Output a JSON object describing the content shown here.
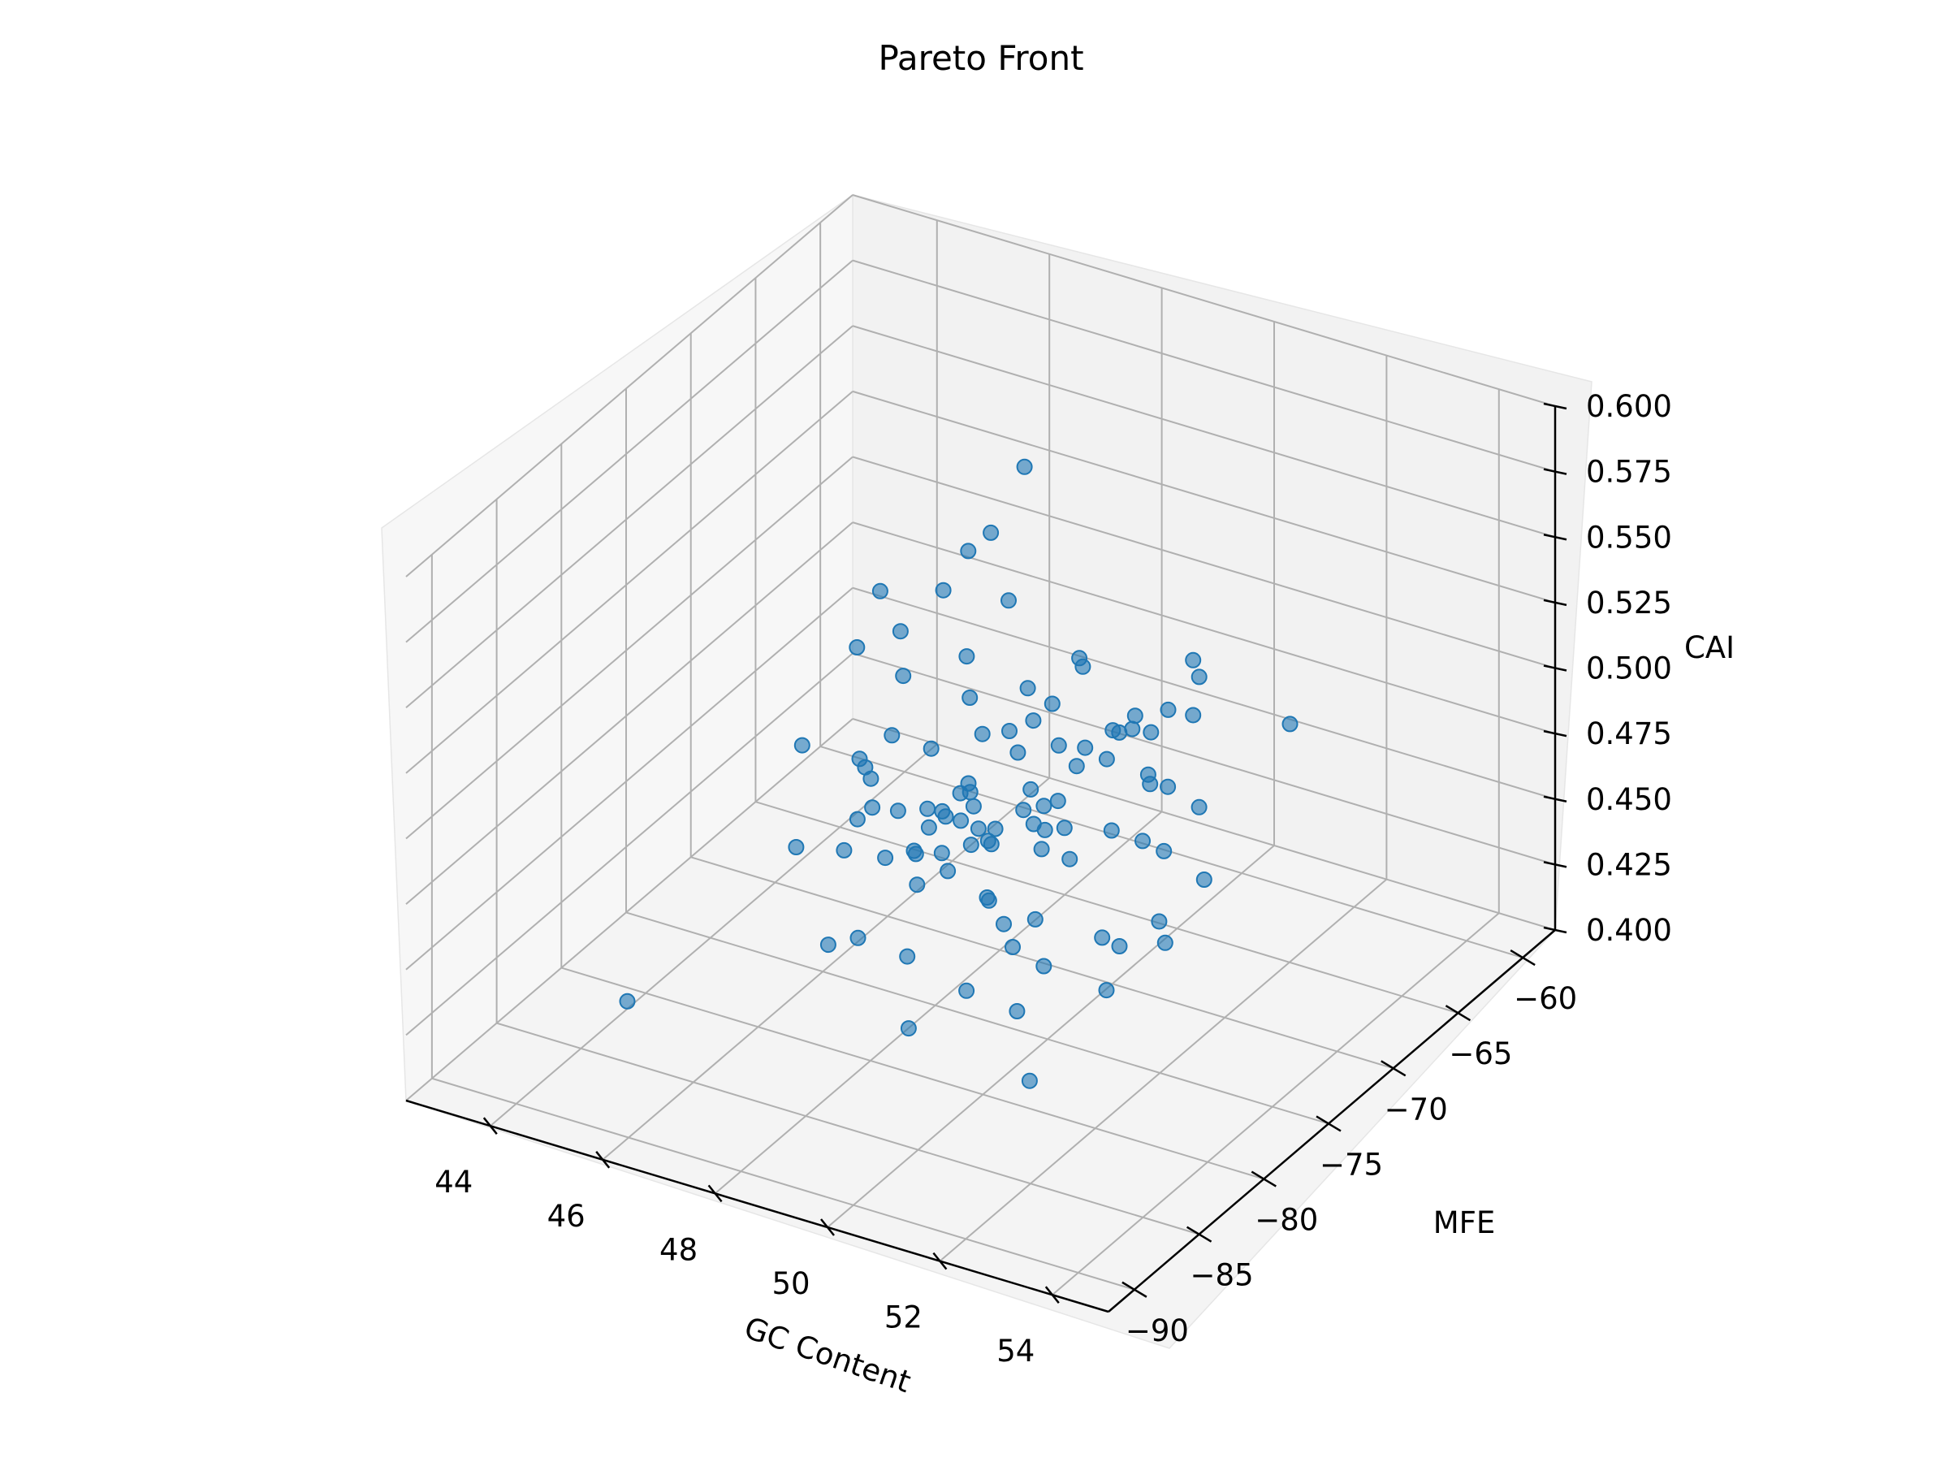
{
  "chart_data": {
    "type": "scatter",
    "projection": "3d",
    "title": "Pareto Front",
    "xlabel": "GC Content",
    "ylabel": "MFE",
    "zlabel": "CAI",
    "xlim": [
      42.5,
      55
    ],
    "ylim": [
      -92,
      -57.5
    ],
    "zlim": [
      0.4,
      0.6
    ],
    "xticks": [
      "44",
      "46",
      "48",
      "50",
      "52",
      "54"
    ],
    "yticks": [
      "−90",
      "−85",
      "−80",
      "−75",
      "−70",
      "−65",
      "−60"
    ],
    "zticks": [
      "0.400",
      "0.425",
      "0.450",
      "0.475",
      "0.500",
      "0.525",
      "0.550",
      "0.575",
      "0.600"
    ],
    "grid": true,
    "color": "#1f77b4",
    "x": [
      49.9,
      45.7,
      47.8,
      50.3,
      48.5,
      49.9,
      47.0,
      51.3,
      50.7,
      48.1,
      49.3,
      47.0,
      49.8,
      49.2,
      50.6,
      48.8,
      50.1,
      52.1,
      50.2,
      49.5,
      50.6,
      50.6,
      47.1,
      48.0,
      51.2,
      49.6,
      47.7,
      49.4,
      47.6,
      48.8,
      50.6,
      46.6,
      48.8,
      48.6,
      50.3,
      48.9,
      49.0,
      49.9,
      47.9,
      46.3,
      51.0,
      47.1,
      49.0,
      47.6,
      47.2,
      49.3,
      48.4,
      47.5,
      48.6,
      48.3,
      50.0,
      52.2,
      50.1,
      49.9,
      52.9,
      47.8,
      50.5,
      51.3,
      49.1,
      52.5,
      50.7,
      48.7,
      46.7,
      51.5,
      47.6,
      49.3,
      46.9,
      50.8,
      47.7,
      49.6,
      51.7,
      51.3,
      51.8,
      48.1,
      46.1,
      48.1,
      48.6,
      46.8,
      51.2,
      46.4,
      50.6,
      50.7,
      52.1,
      50.1,
      51.3,
      52.1,
      53.3,
      52.0,
      50.7,
      48.4,
      48.5,
      48.0,
      48.8,
      50.3,
      52.4,
      49.3,
      53.8,
      46.7,
      52.0,
      51.0
    ],
    "y": [
      -85.3,
      -88.8,
      -80.1,
      -74.6,
      -71.5,
      -73.7,
      -81.4,
      -81.6,
      -80.4,
      -64.3,
      -78.7,
      -76.5,
      -80.4,
      -76.2,
      -77.9,
      -70.0,
      -75.9,
      -85.5,
      -80.4,
      -74.7,
      -76.3,
      -82.2,
      -66.8,
      -72.3,
      -80.5,
      -78.6,
      -66.8,
      -73.7,
      -80.3,
      -77.5,
      -79.9,
      -79.2,
      -76.5,
      -70.0,
      -75.5,
      -78.1,
      -75.7,
      -74.2,
      -71.6,
      -70.3,
      -68.1,
      -71.4,
      -75.0,
      -70.7,
      -70.9,
      -82.8,
      -85.0,
      -75.7,
      -66.2,
      -76.9,
      -72.1,
      -80.0,
      -83.6,
      -76.1,
      -78.3,
      -71.7,
      -72.6,
      -78.4,
      -72.2,
      -80.3,
      -72.5,
      -81.9,
      -75.4,
      -69.8,
      -74.9,
      -76.0,
      -72.7,
      -70.7,
      -79.7,
      -66.5,
      -73.4,
      -74.1,
      -73.5,
      -69.7,
      -71.0,
      -80.4,
      -79.1,
      -75.2,
      -83.6,
      -65.5,
      -65.9,
      -73.0,
      -79.9,
      -84.6,
      -75.7,
      -76.2,
      -70.6,
      -75.7,
      -70.7,
      -81.6,
      -74.4,
      -76.4,
      -75.8,
      -79.0,
      -76.8,
      -80.1,
      -79.4,
      -72.7,
      -74.6,
      -68.1
    ],
    "z": [
      0.447,
      0.445,
      0.446,
      0.469,
      0.543,
      0.506,
      0.481,
      0.482,
      0.438,
      0.488,
      0.505,
      0.494,
      0.44,
      0.454,
      0.444,
      0.451,
      0.477,
      0.442,
      0.477,
      0.483,
      0.49,
      0.51,
      0.54,
      0.47,
      0.52,
      0.493,
      0.569,
      0.486,
      0.479,
      0.467,
      0.534,
      0.508,
      0.482,
      0.452,
      0.495,
      0.491,
      0.513,
      0.524,
      0.461,
      0.512,
      0.522,
      0.477,
      0.468,
      0.464,
      0.536,
      0.46,
      0.468,
      0.474,
      0.496,
      0.485,
      0.499,
      0.454,
      0.508,
      0.538,
      0.529,
      0.518,
      0.5,
      0.527,
      0.504,
      0.474,
      0.511,
      0.49,
      0.53,
      0.526,
      0.456,
      0.48,
      0.509,
      0.488,
      0.489,
      0.485,
      0.476,
      0.523,
      0.531,
      0.483,
      0.529,
      0.51,
      0.479,
      0.484,
      0.488,
      0.523,
      0.454,
      0.514,
      0.473,
      0.522,
      0.491,
      0.516,
      0.523,
      0.533,
      0.462,
      0.506,
      0.462,
      0.452,
      0.526,
      0.454,
      0.468,
      0.504,
      0.504,
      0.485,
      0.448,
      0.501
    ]
  }
}
